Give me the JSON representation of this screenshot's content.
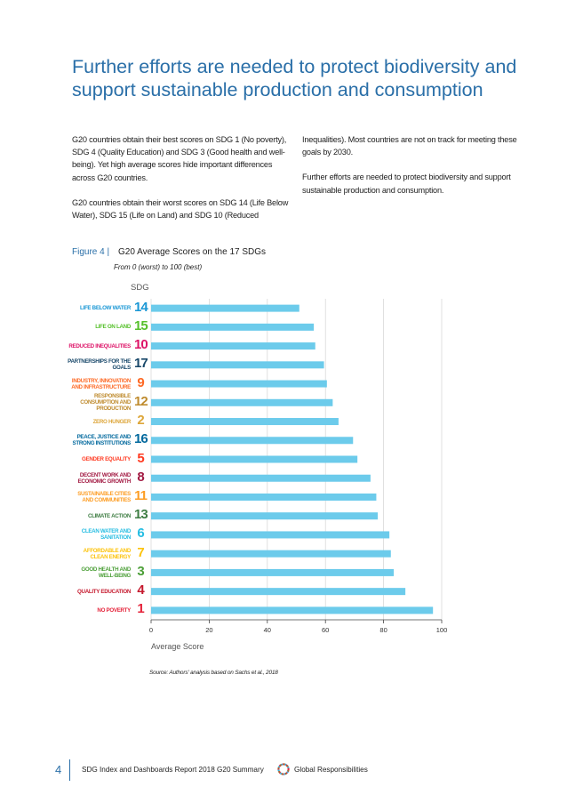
{
  "heading": "Further efforts are needed to protect biodiversity and support sustainable production and consumption",
  "body_left": [
    "G20 countries obtain their best scores on SDG 1 (No poverty), SDG 4 (Quality Education) and SDG 3 (Good health and well-being). Yet high average scores hide important differences across G20 countries.",
    "G20 countries obtain their worst scores on SDG 14 (Life Below Water), SDG 15 (Life on Land) and SDG 10 (Reduced"
  ],
  "body_right": [
    "Inequalities). Most countries are not on track for meeting these goals by 2030.",
    "Further efforts are needed to protect biodiversity and support sustainable production and consumption."
  ],
  "figure": {
    "label": "Figure 4 |",
    "title": "G20 Average Scores on the 17 SDGs",
    "subtitle": "From 0 (worst) to 100 (best)",
    "source": "Source: Authors' analysis based on Sachs et al., 2018"
  },
  "chart_data": {
    "type": "bar",
    "orientation": "horizontal",
    "category_header": "SDG",
    "xlabel": "Average Score",
    "xlim": [
      0,
      100
    ],
    "xticks": [
      0,
      20,
      40,
      60,
      80,
      100
    ],
    "grid": true,
    "bar_color": "#6ccbeb",
    "categories": [
      {
        "sdg": "14",
        "label": "LIFE BELOW WATER",
        "color": "#1a97d5"
      },
      {
        "sdg": "15",
        "label": "LIFE ON LAND",
        "color": "#56c02b"
      },
      {
        "sdg": "10",
        "label": "REDUCED INEQUALITIES",
        "color": "#dd1367"
      },
      {
        "sdg": "17",
        "label": "PARTNERSHIPS FOR THE GOALS",
        "color": "#19486a"
      },
      {
        "sdg": "9",
        "label": "INDUSTRY, INNOVATION AND INFRASTRUCTURE",
        "color": "#fd6925"
      },
      {
        "sdg": "12",
        "label": "RESPONSIBLE CONSUMPTION AND PRODUCTION",
        "color": "#bf8b2e"
      },
      {
        "sdg": "2",
        "label": "ZERO HUNGER",
        "color": "#dda63a"
      },
      {
        "sdg": "16",
        "label": "PEACE, JUSTICE AND STRONG INSTITUTIONS",
        "color": "#00689d"
      },
      {
        "sdg": "5",
        "label": "GENDER EQUALITY",
        "color": "#ff3a21"
      },
      {
        "sdg": "8",
        "label": "DECENT WORK AND ECONOMIC GROWTH",
        "color": "#a21942"
      },
      {
        "sdg": "11",
        "label": "SUSTAINABLE CITIES AND COMMUNITIES",
        "color": "#fd9d24"
      },
      {
        "sdg": "13",
        "label": "CLIMATE ACTION",
        "color": "#3f7e44"
      },
      {
        "sdg": "6",
        "label": "CLEAN WATER AND SANITATION",
        "color": "#26bde2"
      },
      {
        "sdg": "7",
        "label": "AFFORDABLE AND CLEAN ENERGY",
        "color": "#fcc30b"
      },
      {
        "sdg": "3",
        "label": "GOOD HEALTH AND WELL-BEING",
        "color": "#4c9f38"
      },
      {
        "sdg": "4",
        "label": "QUALITY EDUCATION",
        "color": "#c5192d"
      },
      {
        "sdg": "1",
        "label": "NO POVERTY",
        "color": "#e5243b"
      }
    ],
    "values": [
      51,
      56,
      56.5,
      59.5,
      60.5,
      62.5,
      64.5,
      69.5,
      71,
      75.5,
      77.5,
      78,
      82,
      82.5,
      83.5,
      87.5,
      97
    ]
  },
  "footer": {
    "page_number": "4",
    "left": "SDG Index and Dashboards Report 2018 G20 Summary",
    "right": "Global Responsibilities"
  }
}
